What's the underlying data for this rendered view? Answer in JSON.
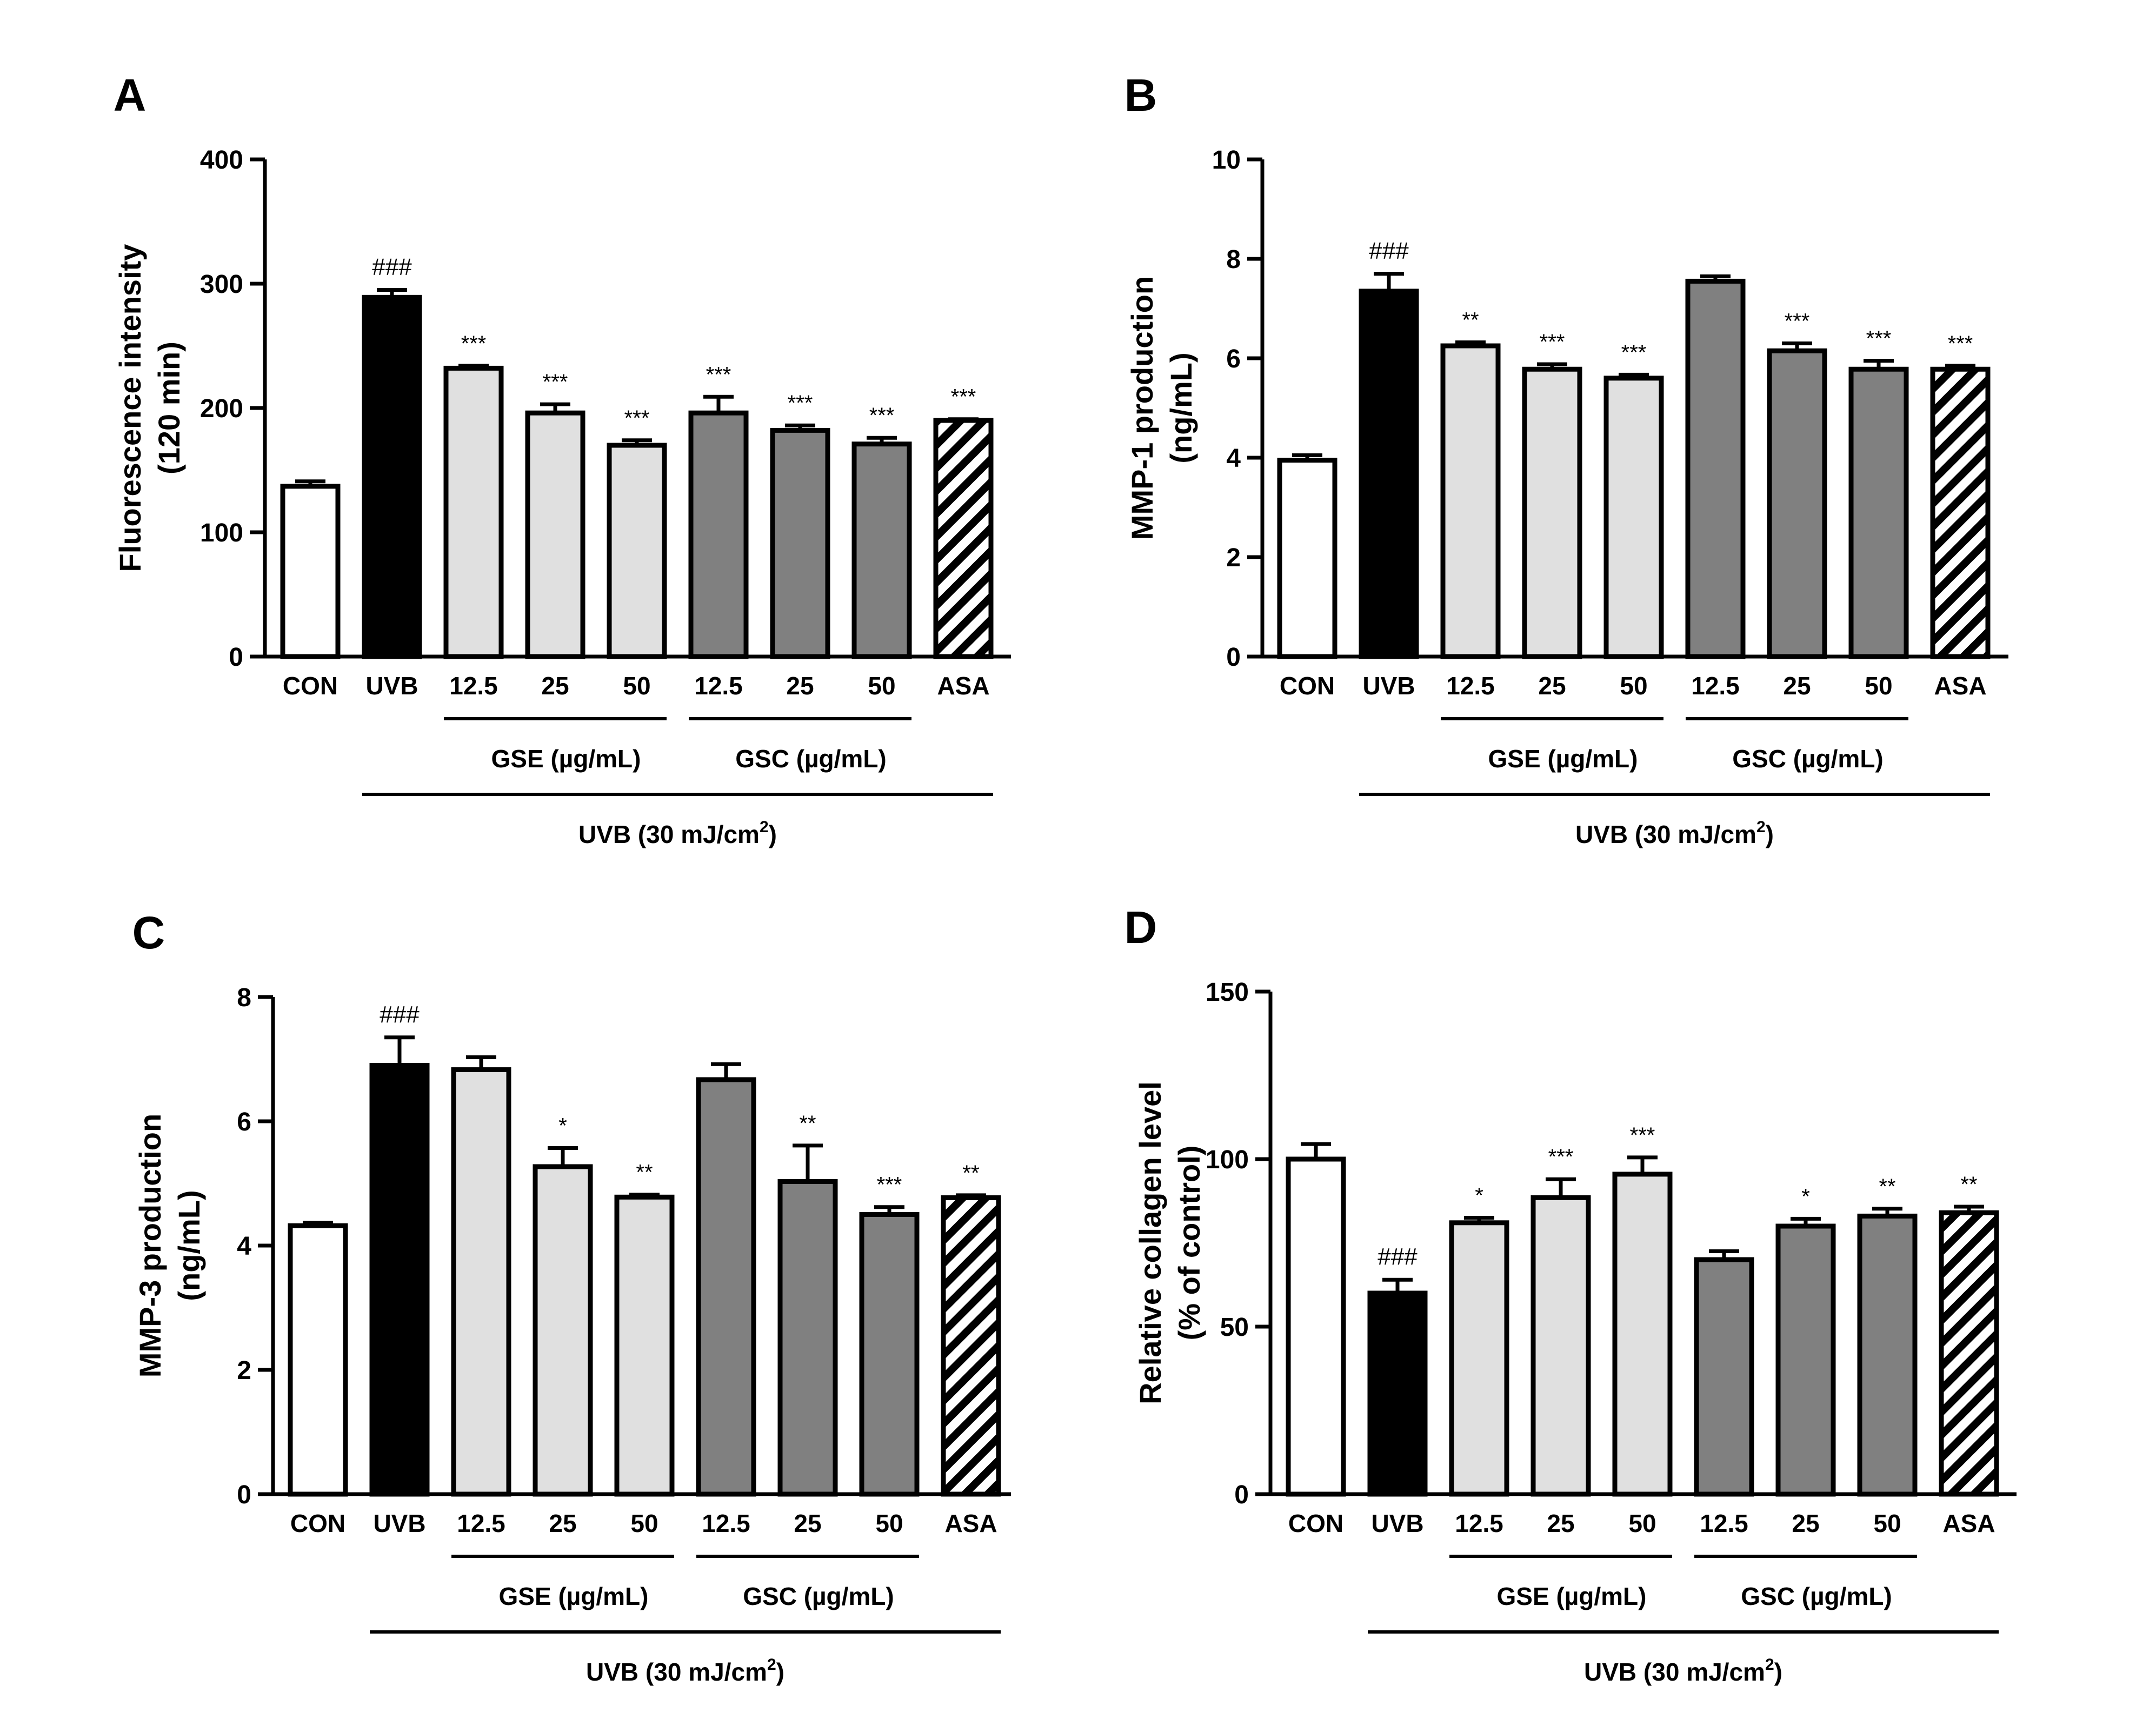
{
  "figure": {
    "groups": {
      "gse": "GSE (µg/mL)",
      "gsc": "GSC (µg/mL)",
      "uvb_prefix": "UVB (30 mJ/cm",
      "uvb_sup": "2",
      "uvb_suffix": ")"
    }
  },
  "chart_data": [
    {
      "type": "bar",
      "panel": "A",
      "ylabel": [
        "Fluorescence intensity",
        "(120 min)"
      ],
      "categories": [
        "CON",
        "UVB",
        "12.5",
        "25",
        "50",
        "12.5",
        "25",
        "50",
        "ASA"
      ],
      "values": [
        137,
        289,
        232,
        196,
        170,
        196,
        182,
        171,
        190
      ],
      "errors": [
        4,
        6,
        2,
        7,
        4,
        13,
        4,
        5,
        1
      ],
      "significance": [
        "",
        "###",
        "***",
        "***",
        "***",
        "***",
        "***",
        "***",
        "***"
      ],
      "fills": [
        "white",
        "black",
        "light",
        "light",
        "light",
        "dark",
        "dark",
        "dark",
        "hatch"
      ],
      "ylim": [
        0,
        400
      ],
      "yticks": [
        0,
        100,
        200,
        300,
        400
      ]
    },
    {
      "type": "bar",
      "panel": "B",
      "ylabel": [
        "MMP-1 production",
        "(ng/mL)"
      ],
      "categories": [
        "CON",
        "UVB",
        "12.5",
        "25",
        "50",
        "12.5",
        "25",
        "50",
        "ASA"
      ],
      "values": [
        3.95,
        7.35,
        6.25,
        5.78,
        5.6,
        7.55,
        6.15,
        5.78,
        5.78
      ],
      "errors": [
        0.1,
        0.35,
        0.07,
        0.1,
        0.07,
        0.1,
        0.15,
        0.17,
        0.07
      ],
      "significance": [
        "",
        "###",
        "**",
        "***",
        "***",
        "",
        "***",
        "***",
        "***"
      ],
      "fills": [
        "white",
        "black",
        "light",
        "light",
        "light",
        "dark",
        "dark",
        "dark",
        "hatch"
      ],
      "ylim": [
        0,
        10
      ],
      "yticks": [
        0,
        2,
        4,
        6,
        8,
        10
      ]
    },
    {
      "type": "bar",
      "panel": "C",
      "ylabel": [
        "MMP-3 production",
        "(ng/mL)"
      ],
      "categories": [
        "CON",
        "UVB",
        "12.5",
        "25",
        "50",
        "12.5",
        "25",
        "50",
        "ASA"
      ],
      "values": [
        4.32,
        6.9,
        6.83,
        5.27,
        4.78,
        6.67,
        5.03,
        4.5,
        4.77
      ],
      "errors": [
        0.05,
        0.45,
        0.2,
        0.3,
        0.04,
        0.25,
        0.58,
        0.12,
        0.04
      ],
      "significance": [
        "",
        "###",
        "",
        "*",
        "**",
        "",
        "**",
        "***",
        "**"
      ],
      "fills": [
        "white",
        "black",
        "light",
        "light",
        "light",
        "dark",
        "dark",
        "dark",
        "hatch"
      ],
      "ylim": [
        0,
        8
      ],
      "yticks": [
        0,
        2,
        4,
        6,
        8
      ]
    },
    {
      "type": "bar",
      "panel": "D",
      "ylabel": [
        "Relative collagen level",
        "(% of control)"
      ],
      "categories": [
        "CON",
        "UVB",
        "12.5",
        "25",
        "50",
        "12.5",
        "25",
        "50",
        "ASA"
      ],
      "values": [
        100,
        60,
        81,
        88.5,
        95.5,
        70,
        80,
        83,
        84
      ],
      "errors": [
        4.5,
        4,
        1.5,
        5.5,
        5,
        2.5,
        2.2,
        2.2,
        1.8
      ],
      "significance": [
        "",
        "###",
        "*",
        "***",
        "***",
        "",
        "*",
        "**",
        "**"
      ],
      "fills": [
        "white",
        "black",
        "light",
        "light",
        "light",
        "dark",
        "dark",
        "dark",
        "hatch"
      ],
      "ylim": [
        0,
        150
      ],
      "yticks": [
        0,
        50,
        100,
        150
      ]
    }
  ]
}
